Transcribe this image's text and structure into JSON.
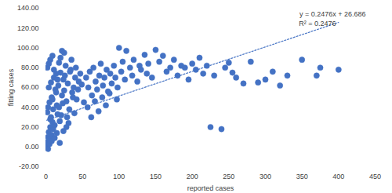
{
  "chart_data": {
    "type": "scatter",
    "x_label": "reported cases",
    "y_label": "fitting cases",
    "color": "#4472c4",
    "marker": "circle",
    "grid": false,
    "xlim": [
      0,
      450
    ],
    "xticks": [
      0,
      50,
      100,
      150,
      200,
      250,
      300,
      350,
      400,
      450
    ],
    "ylim": [
      -20,
      140
    ],
    "yticks": [
      {
        "value": -20,
        "label": "-20.00"
      },
      {
        "value": 0,
        "label": "0.00"
      },
      {
        "value": 20,
        "label": "20.00"
      },
      {
        "value": 40,
        "label": "40.00"
      },
      {
        "value": 60,
        "label": "60.00"
      },
      {
        "value": 80,
        "label": "80.00"
      },
      {
        "value": 100,
        "label": "100.00"
      },
      {
        "value": 120,
        "label": "120.00"
      },
      {
        "value": 140,
        "label": "140.00"
      }
    ],
    "trendline": {
      "slope": 0.2476,
      "intercept": 26.686,
      "line_style": "dotted",
      "equation_label": "y = 0.2476x + 26.686",
      "r2_label": "R² = 0.2476"
    },
    "x": [
      1,
      2,
      3,
      4,
      5,
      6,
      7,
      8,
      9,
      10,
      2,
      3,
      5,
      6,
      8,
      10,
      12,
      14,
      15,
      16,
      4,
      7,
      9,
      11,
      13,
      17,
      18,
      20,
      22,
      24,
      1,
      3,
      5,
      8,
      12,
      15,
      19,
      21,
      23,
      25,
      26,
      28,
      30,
      32,
      34,
      36,
      38,
      40,
      42,
      45,
      18,
      20,
      22,
      25,
      27,
      29,
      31,
      33,
      35,
      37,
      2,
      4,
      6,
      9,
      11,
      14,
      16,
      19,
      24,
      28,
      39,
      41,
      44,
      47,
      49,
      52,
      55,
      58,
      60,
      63,
      65,
      68,
      70,
      73,
      75,
      78,
      80,
      83,
      85,
      88,
      90,
      93,
      95,
      98,
      100,
      103,
      105,
      108,
      110,
      115,
      118,
      120,
      125,
      128,
      130,
      135,
      138,
      140,
      145,
      150,
      155,
      160,
      165,
      170,
      175,
      180,
      185,
      190,
      195,
      200,
      205,
      210,
      215,
      220,
      225,
      230,
      240,
      245,
      250,
      255,
      260,
      270,
      280,
      290,
      300,
      310,
      320,
      330,
      350,
      370,
      375,
      400,
      57,
      62,
      67,
      72,
      77,
      82,
      87,
      97
    ],
    "values": [
      2,
      5,
      10,
      15,
      8,
      20,
      30,
      12,
      25,
      18,
      35,
      40,
      45,
      28,
      50,
      38,
      22,
      55,
      42,
      33,
      60,
      65,
      48,
      70,
      58,
      62,
      40,
      75,
      52,
      68,
      0,
      -2,
      3,
      6,
      9,
      14,
      26,
      32,
      44,
      57,
      72,
      46,
      64,
      38,
      78,
      55,
      60,
      70,
      48,
      66,
      85,
      90,
      97,
      95,
      82,
      30,
      24,
      76,
      88,
      50,
      80,
      84,
      88,
      92,
      78,
      74,
      68,
      4,
      16,
      20,
      34,
      80,
      58,
      74,
      63,
      45,
      70,
      60,
      76,
      52,
      80,
      66,
      58,
      72,
      84,
      62,
      70,
      78,
      56,
      74,
      64,
      82,
      70,
      60,
      100,
      76,
      86,
      68,
      97,
      80,
      72,
      88,
      66,
      82,
      78,
      93,
      74,
      84,
      70,
      98,
      86,
      92,
      76,
      80,
      88,
      72,
      82,
      80,
      68,
      84,
      78,
      90,
      74,
      82,
      20,
      72,
      18,
      80,
      85,
      75,
      70,
      64,
      86,
      65,
      68,
      76,
      62,
      72,
      88,
      72,
      80,
      78,
      40,
      30,
      46,
      36,
      50,
      42,
      54,
      48
    ]
  }
}
